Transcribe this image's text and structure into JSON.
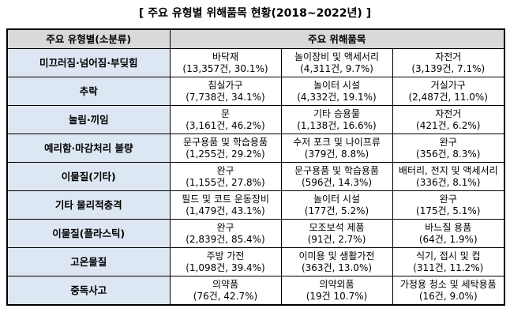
{
  "title": "[ 주요 유형별 위해품목 현황(2018~2022년) ]",
  "headers": {
    "category": "주요 유형별(소분류)",
    "items": "주요 위해품목"
  },
  "rows": [
    {
      "category": "미끄러짐·넘어짐·부딪힘",
      "items": [
        {
          "name": "바닥재",
          "stat": "(13,357건, 30.1%)"
        },
        {
          "name": "놀이장비 및 액세서리",
          "stat": "(4,311건, 9.7%)"
        },
        {
          "name": "자전거",
          "stat": "(3,139건, 7.1%)"
        }
      ]
    },
    {
      "category": "추락",
      "items": [
        {
          "name": "침실가구",
          "stat": "(7,738건, 34.1%)"
        },
        {
          "name": "놀이터 시설",
          "stat": "(4,332건, 19.1%)"
        },
        {
          "name": "거실가구",
          "stat": "(2,487건, 11.0%)"
        }
      ]
    },
    {
      "category": "눌림·끼임",
      "items": [
        {
          "name": "문",
          "stat": "(3,161건, 46.2%)"
        },
        {
          "name": "기타 승용물",
          "stat": "(1,138건, 16.6%)"
        },
        {
          "name": "자전거",
          "stat": "(421건, 6.2%)"
        }
      ]
    },
    {
      "category": "예리함·마감처리 불량",
      "items": [
        {
          "name": "문구용품 및 학습용품",
          "stat": "(1,255건, 29.2%)"
        },
        {
          "name": "수저 포크 및 나이프류",
          "stat": "(379건, 8.8%)"
        },
        {
          "name": "완구",
          "stat": "(356건, 8.3%)"
        }
      ]
    },
    {
      "category": "이물질(기타)",
      "items": [
        {
          "name": "완구",
          "stat": "(1,155건, 27.8%)"
        },
        {
          "name": "문구용품 및 학습용품",
          "stat": "(596건, 14.3%)"
        },
        {
          "name": "배터리, 전지 및 액세서리",
          "stat": "(336건, 8.1%)"
        }
      ]
    },
    {
      "category": "기타 물리적충격",
      "items": [
        {
          "name": "필드 및 코트 운동장비",
          "stat": "(1,479건, 43.1%)"
        },
        {
          "name": "놀이터 시설",
          "stat": "(177건, 5.2%)"
        },
        {
          "name": "완구",
          "stat": "(175건, 5.1%)"
        }
      ]
    },
    {
      "category": "이물질(플라스틱)",
      "items": [
        {
          "name": "완구",
          "stat": "(2,839건, 85.4%)"
        },
        {
          "name": "모조보석 제품",
          "stat": "(91건, 2.7%)"
        },
        {
          "name": "바느질 용품",
          "stat": "(64건, 1.9%)"
        }
      ]
    },
    {
      "category": "고온물질",
      "items": [
        {
          "name": "주방 가전",
          "stat": "(1,098건, 39.4%)"
        },
        {
          "name": "이미용 및 생활가전",
          "stat": "(363건, 13.0%)"
        },
        {
          "name": "식기, 접시 및 컵",
          "stat": "(311건, 11.2%)"
        }
      ]
    },
    {
      "category": "중독사고",
      "items": [
        {
          "name": "의약품",
          "stat": "(76건, 42.7%)"
        },
        {
          "name": "의약외품",
          "stat": "(19건 10.7%)"
        },
        {
          "name": "가정용 청소 및 세탁용품",
          "stat": "(16건, 9.0%)"
        }
      ]
    }
  ]
}
